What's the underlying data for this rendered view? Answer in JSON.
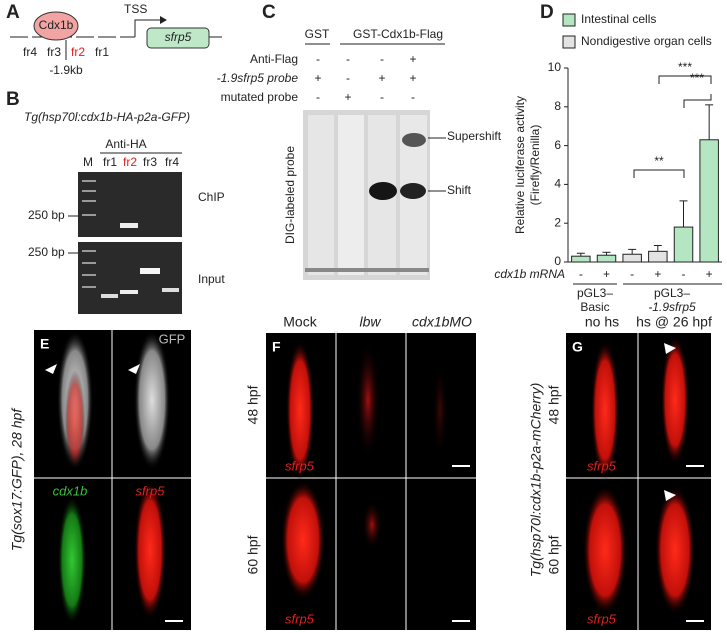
{
  "panel_a": {
    "letter": "A",
    "protein": "Cdx1b",
    "tss": "TSS",
    "gene": "sfrp5",
    "fragments": [
      "fr4",
      "fr3",
      "fr2",
      "fr1"
    ],
    "position": "-1.9kb"
  },
  "panel_b": {
    "letter": "B",
    "title": "Tg(hsp70l:cdx1b-HA-p2a-GFP)",
    "antibody": "Anti-HA",
    "lanes": [
      "M",
      "fr1",
      "fr2",
      "fr3",
      "fr4"
    ],
    "marker_top": "250 bp",
    "marker_bottom": "250 bp",
    "row_top": "ChIP",
    "row_bottom": "Input"
  },
  "panel_c": {
    "letter": "C",
    "group_1": "GST",
    "group_2": "GST-Cdx1b-Flag",
    "rows": [
      {
        "label": "Anti-Flag",
        "signs": [
          "-",
          "-",
          "-",
          "+"
        ]
      },
      {
        "label": "-1.9sfrp5 probe",
        "signs": [
          "+",
          "-",
          "+",
          "+"
        ]
      },
      {
        "label": "mutated probe",
        "signs": [
          "-",
          "+",
          "-",
          "-"
        ]
      }
    ],
    "y_label": "DIG-labeled probe",
    "supershift": "Supershift",
    "shift": "Shift"
  },
  "chart_data": {
    "type": "bar",
    "letter": "D",
    "y_label_line1": "Relative luciferase activity",
    "y_label_line2": "(Firefly/Renilla)",
    "x_label": "cdx1b mRNA",
    "categories": [
      "-",
      "+",
      "-",
      "+",
      "-",
      "+"
    ],
    "series": [
      {
        "name": "Intestinal cells",
        "color": "#b5e6c2",
        "values": [
          0.3,
          0.35,
          null,
          null,
          1.8,
          6.3
        ],
        "errors": [
          0.15,
          0.15,
          null,
          null,
          1.35,
          1.8
        ]
      },
      {
        "name": "Nondigestive organ cells",
        "color": "#e3e3e3",
        "values": [
          null,
          null,
          0.4,
          0.55,
          null,
          null
        ],
        "errors": [
          null,
          null,
          0.25,
          0.3,
          null,
          null
        ]
      }
    ],
    "ylim": [
      0,
      10
    ],
    "yticks": [
      0,
      2,
      4,
      6,
      8,
      10
    ],
    "groups": [
      [
        "pGL3–",
        "Basic"
      ],
      [
        "pGL3–",
        "-1.9sfrp5"
      ]
    ],
    "annotations": [
      "**",
      "***",
      "***"
    ]
  },
  "panel_e": {
    "letter": "E",
    "channel": "GFP",
    "side_label": "Tg(sox17:GFP), 28 hpf",
    "green_label": "cdx1b",
    "red_label": "sfrp5"
  },
  "panel_f": {
    "letter": "F",
    "columns": [
      "Mock",
      "lbw",
      "cdx1bMO"
    ],
    "rows": [
      "48 hpf",
      "60 hpf"
    ],
    "probe_top": "sfrp5",
    "probe_bottom": "sfrp5"
  },
  "panel_g": {
    "letter": "G",
    "columns": [
      "no hs",
      "hs @ 26 hpf"
    ],
    "rows": [
      "48 hpf",
      "60 hpf"
    ],
    "probe_top": "sfrp5",
    "probe_bottom": "sfrp5",
    "side_label": "Tg(hsp70l:cdx1b-p2a-mCherry)"
  }
}
